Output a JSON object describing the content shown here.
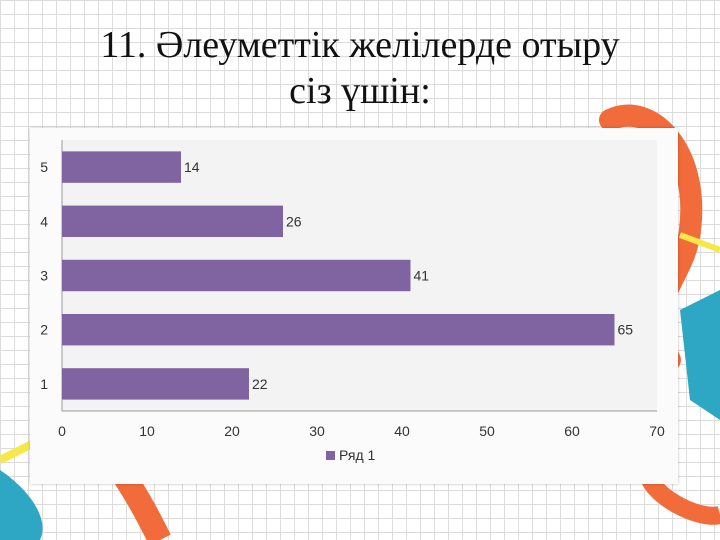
{
  "slide": {
    "title_line1": "11. Әлеуметтік желілерде отыру",
    "title_line2": "сіз үшін:"
  },
  "colors": {
    "bar": "#8064A2",
    "accent_orange": "#F26B3A",
    "accent_teal": "#2EA7C4",
    "accent_yellow": "#F5E94A"
  },
  "chart_data": {
    "type": "bar",
    "orientation": "horizontal",
    "categories": [
      "1",
      "2",
      "3",
      "4",
      "5"
    ],
    "series": [
      {
        "name": "Ряд 1",
        "values": [
          22,
          65,
          41,
          26,
          14
        ]
      }
    ],
    "xlim": [
      0,
      70
    ],
    "xticks": [
      "0",
      "10",
      "20",
      "30",
      "40",
      "50",
      "60",
      "70"
    ],
    "data_labels": true,
    "legend": "bottom",
    "grid": false
  }
}
